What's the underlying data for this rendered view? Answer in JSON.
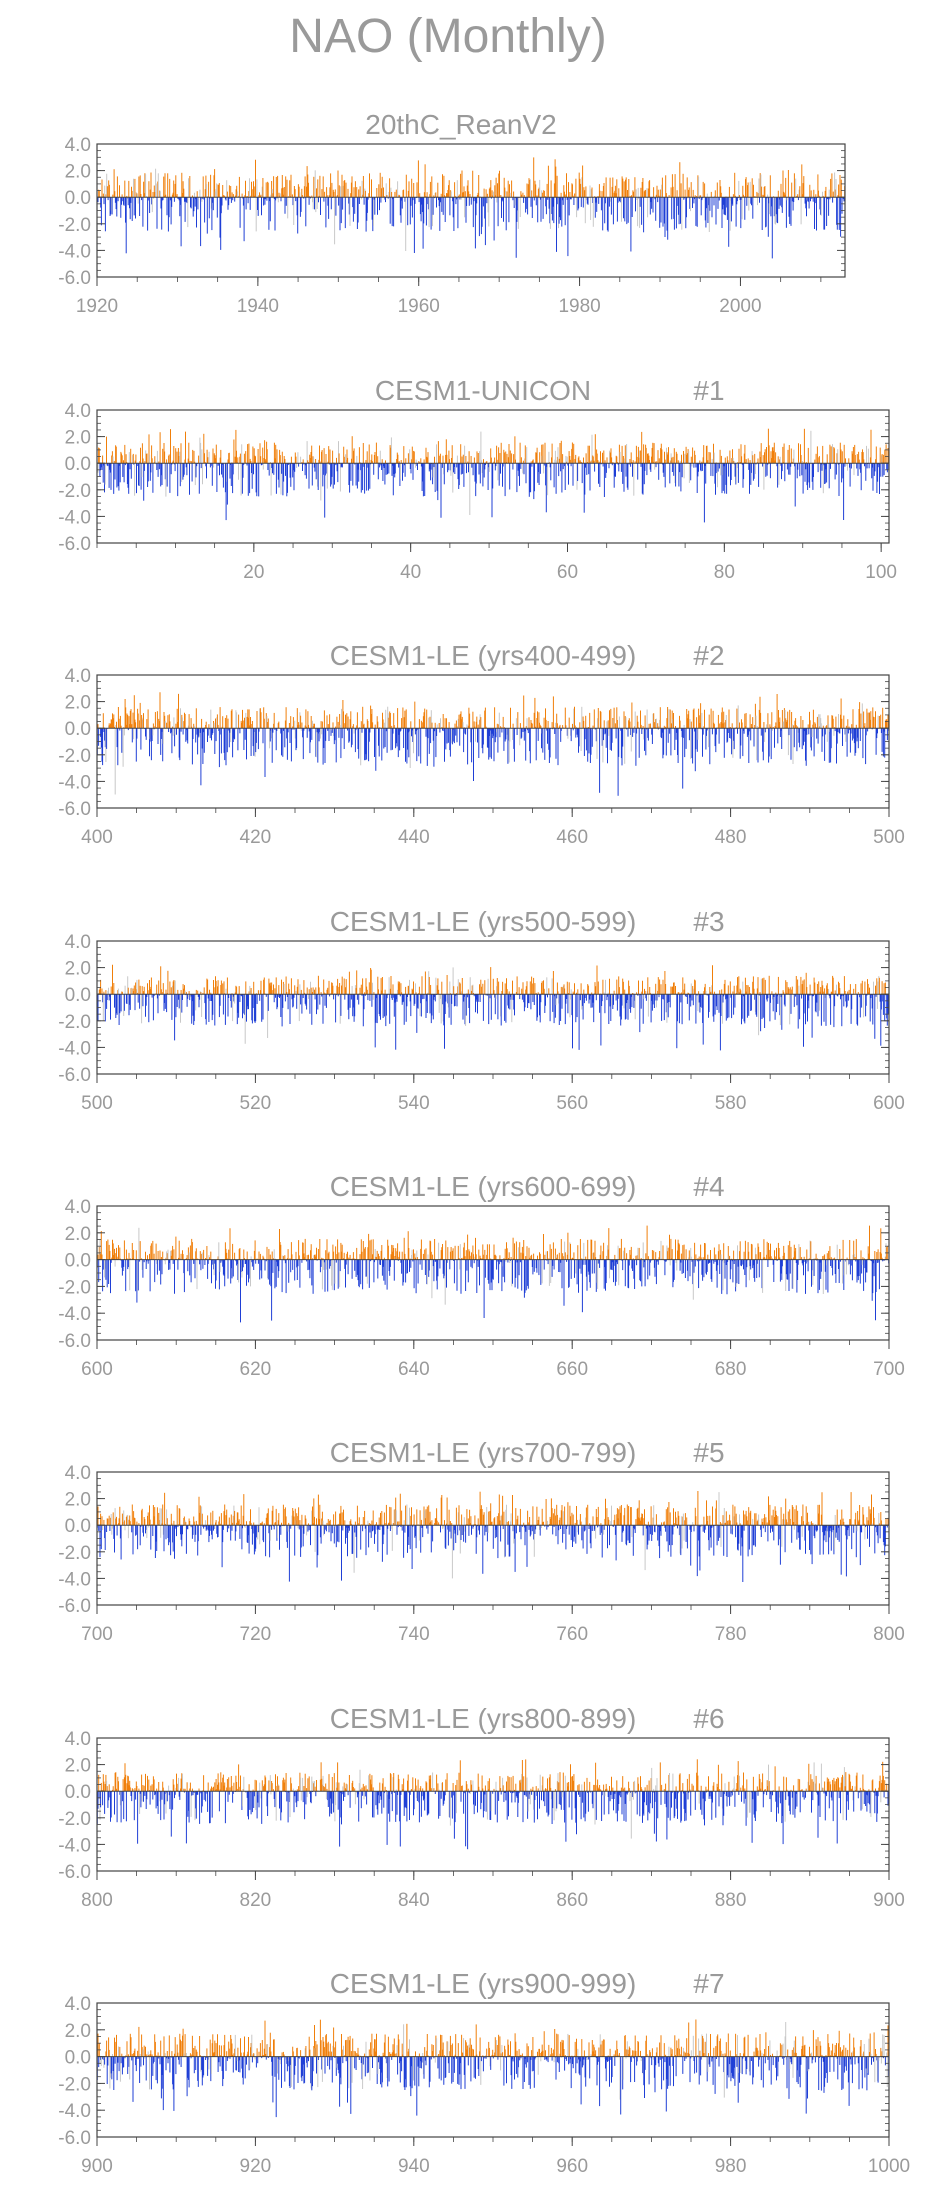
{
  "title": "NAO (Monthly)",
  "colors": {
    "positive": "#f07f0a",
    "negative": "#1f3fd6",
    "frame": "#444444",
    "text": "#9a9a9a"
  },
  "chart_data": [
    {
      "type": "bar",
      "title": "20thC_ReanV2",
      "member": "",
      "xlim": [
        1920,
        2013
      ],
      "ylim": [
        -6.0,
        4.0
      ],
      "xticks": [
        1920,
        1940,
        1960,
        1980,
        2000
      ],
      "yticks": [
        "4.0",
        "2.0",
        "0.0",
        "-2.0",
        "-4.0",
        "-6.0"
      ],
      "monthly_range": [
        -4.7,
        3.1
      ],
      "positive_color": "#f07f0a",
      "negative_color": "#1f3fd6"
    },
    {
      "type": "bar",
      "title": "CESM1-UNICON",
      "member": "#1",
      "xlim": [
        0,
        101
      ],
      "ylim": [
        -6.0,
        4.0
      ],
      "xticks": [
        20,
        40,
        60,
        80,
        100
      ],
      "yticks": [
        "4.0",
        "2.0",
        "0.0",
        "-2.0",
        "-4.0",
        "-6.0"
      ],
      "monthly_range": [
        -4.6,
        2.6
      ],
      "positive_color": "#f07f0a",
      "negative_color": "#1f3fd6"
    },
    {
      "type": "bar",
      "title": "CESM1-LE (yrs400-499)",
      "member": "#2",
      "xlim": [
        400,
        500
      ],
      "ylim": [
        -6.0,
        4.0
      ],
      "xticks": [
        400,
        420,
        440,
        460,
        480,
        500
      ],
      "yticks": [
        "4.0",
        "2.0",
        "0.0",
        "-2.0",
        "-4.0",
        "-6.0"
      ],
      "monthly_range": [
        -5.2,
        2.7
      ],
      "positive_color": "#f07f0a",
      "negative_color": "#1f3fd6"
    },
    {
      "type": "bar",
      "title": "CESM1-LE (yrs500-599)",
      "member": "#3",
      "xlim": [
        500,
        600
      ],
      "ylim": [
        -6.0,
        4.0
      ],
      "xticks": [
        500,
        520,
        540,
        560,
        580,
        600
      ],
      "yticks": [
        "4.0",
        "2.0",
        "0.0",
        "-2.0",
        "-4.0",
        "-6.0"
      ],
      "monthly_range": [
        -4.4,
        2.3
      ],
      "positive_color": "#f07f0a",
      "negative_color": "#1f3fd6"
    },
    {
      "type": "bar",
      "title": "CESM1-LE (yrs600-699)",
      "member": "#4",
      "xlim": [
        600,
        700
      ],
      "ylim": [
        -6.0,
        4.0
      ],
      "xticks": [
        600,
        620,
        640,
        660,
        680,
        700
      ],
      "yticks": [
        "4.0",
        "2.0",
        "0.0",
        "-2.0",
        "-4.0",
        "-6.0"
      ],
      "monthly_range": [
        -4.7,
        2.6
      ],
      "positive_color": "#f07f0a",
      "negative_color": "#1f3fd6"
    },
    {
      "type": "bar",
      "title": "CESM1-LE (yrs700-799)",
      "member": "#5",
      "xlim": [
        700,
        800
      ],
      "ylim": [
        -6.0,
        4.0
      ],
      "xticks": [
        700,
        720,
        740,
        760,
        780,
        800
      ],
      "yticks": [
        "4.0",
        "2.0",
        "0.0",
        "-2.0",
        "-4.0",
        "-6.0"
      ],
      "monthly_range": [
        -4.5,
        2.6
      ],
      "positive_color": "#f07f0a",
      "negative_color": "#1f3fd6"
    },
    {
      "type": "bar",
      "title": "CESM1-LE (yrs800-899)",
      "member": "#6",
      "xlim": [
        800,
        900
      ],
      "ylim": [
        -6.0,
        4.0
      ],
      "xticks": [
        800,
        820,
        840,
        860,
        880,
        900
      ],
      "yticks": [
        "4.0",
        "2.0",
        "0.0",
        "-2.0",
        "-4.0",
        "-6.0"
      ],
      "monthly_range": [
        -4.5,
        2.4
      ],
      "positive_color": "#f07f0a",
      "negative_color": "#1f3fd6"
    },
    {
      "type": "bar",
      "title": "CESM1-LE (yrs900-999)",
      "member": "#7",
      "xlim": [
        900,
        1000
      ],
      "ylim": [
        -6.0,
        4.0
      ],
      "xticks": [
        900,
        920,
        940,
        960,
        980,
        1000
      ],
      "yticks": [
        "4.0",
        "2.0",
        "0.0",
        "-2.0",
        "-4.0",
        "-6.0"
      ],
      "monthly_range": [
        -4.6,
        2.9
      ],
      "positive_color": "#f07f0a",
      "negative_color": "#1f3fd6"
    }
  ]
}
